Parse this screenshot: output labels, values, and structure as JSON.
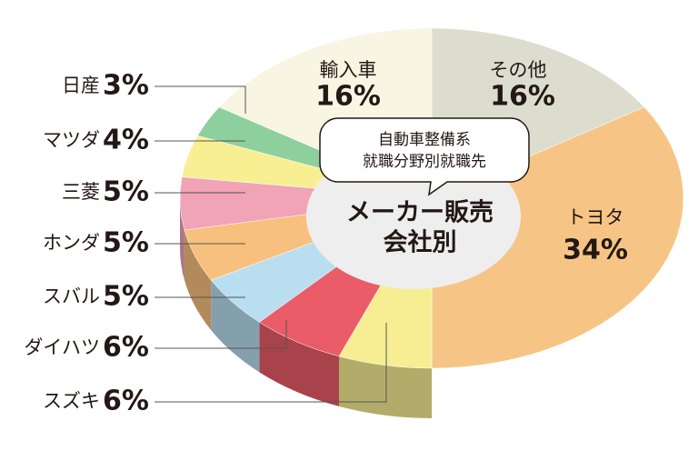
{
  "chart_data": {
    "type": "pie",
    "subtitle": [
      "自動車整備系",
      "就職分野別就職先"
    ],
    "title": [
      "メーカー販売",
      "会社別"
    ],
    "categories": [
      "その他",
      "トヨタ",
      "スズキ",
      "ダイハツ",
      "スバル",
      "ホンダ",
      "三菱",
      "マツダ",
      "日産",
      "輸入車"
    ],
    "values": [
      16,
      34,
      6,
      6,
      5,
      5,
      5,
      4,
      3,
      16
    ],
    "value_labels": [
      "16%",
      "34%",
      "6%",
      "6%",
      "5%",
      "5%",
      "5%",
      "4%",
      "3%",
      "16%"
    ],
    "colors": [
      "#dcdccf",
      "#f6c585",
      "#f7ee93",
      "#e95c68",
      "#b9def0",
      "#f8c07e",
      "#f0a4b6",
      "#f8ef92",
      "#8ecf9e",
      "#f9f5e3"
    ]
  }
}
